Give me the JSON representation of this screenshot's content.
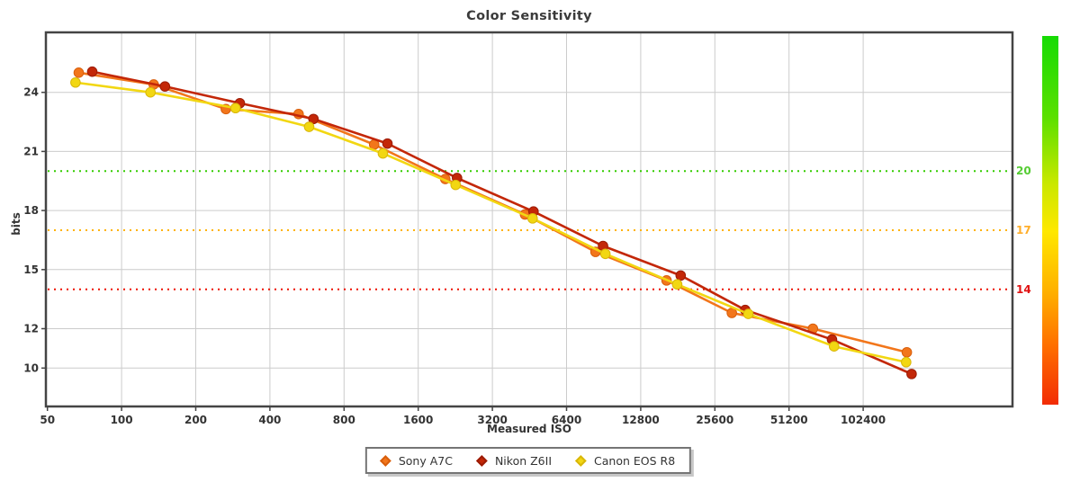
{
  "chart_data": {
    "type": "line",
    "title": "Color Sensitivity",
    "xlabel": "Measured ISO",
    "ylabel": "bits",
    "x_scale": "log2",
    "grid": true,
    "legend_position": "bottom-center",
    "x_ticks": [
      50,
      100,
      200,
      400,
      800,
      1600,
      3200,
      6400,
      12800,
      25600,
      51200,
      102400
    ],
    "y_ticks": [
      24,
      21,
      18,
      15,
      12,
      10
    ],
    "xlim": [
      50,
      420000
    ],
    "ylim": [
      8,
      27
    ],
    "reference_lines": [
      {
        "label": "20",
        "value": 20,
        "label_color": "#55CC33",
        "line_color": "#33CC00",
        "style": "dotted"
      },
      {
        "label": "17",
        "value": 17,
        "label_color": "#FFAE2A",
        "line_color": "#FFB300",
        "style": "dotted"
      },
      {
        "label": "14",
        "value": 14,
        "label_color": "#E01111",
        "line_color": "#EE1100",
        "style": "dotted"
      }
    ],
    "series": [
      {
        "name": "Sony A7C",
        "color": "#F2761B",
        "marker_edge": "#D85E0C",
        "x": [
          67,
          135,
          265,
          523,
          1060,
          2060,
          4340,
          8390,
          16300,
          30000,
          64000,
          154000
        ],
        "y": [
          25.0,
          24.4,
          23.15,
          22.9,
          21.35,
          19.6,
          17.8,
          15.9,
          14.45,
          12.8,
          12.0,
          10.8
        ]
      },
      {
        "name": "Nikon Z6II",
        "color": "#C32708",
        "marker_edge": "#9C1B05",
        "x": [
          76,
          150,
          302,
          601,
          1200,
          2300,
          4700,
          9000,
          18600,
          34000,
          76500,
          161000
        ],
        "y": [
          25.05,
          24.3,
          23.45,
          22.65,
          21.4,
          19.65,
          17.95,
          16.2,
          14.7,
          12.95,
          11.45,
          9.7
        ]
      },
      {
        "name": "Canon EOS R8",
        "color": "#F2D712",
        "marker_edge": "#D9B70A",
        "x": [
          65,
          131,
          290,
          577,
          1150,
          2270,
          4660,
          9200,
          18000,
          35000,
          78000,
          153000
        ],
        "y": [
          24.5,
          24.0,
          23.2,
          22.25,
          20.9,
          19.3,
          17.6,
          15.8,
          14.25,
          12.75,
          11.1,
          10.3
        ]
      }
    ],
    "colorbar": {
      "stops": [
        {
          "color": "#16DB04",
          "pos": 0
        },
        {
          "color": "#5BE000",
          "pos": 22
        },
        {
          "color": "#C9E800",
          "pos": 40
        },
        {
          "color": "#FFE800",
          "pos": 53
        },
        {
          "color": "#FFAE00",
          "pos": 70
        },
        {
          "color": "#FF6F00",
          "pos": 84
        },
        {
          "color": "#F22C04",
          "pos": 100
        }
      ]
    },
    "style": {
      "grid_color": "#CCCCCC",
      "border_color": "#444444",
      "text_color": "#333333",
      "background": "#FFFFFF"
    }
  }
}
